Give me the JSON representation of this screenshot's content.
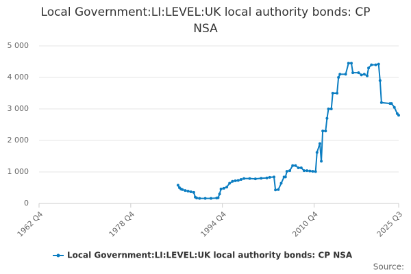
{
  "chart_data": {
    "type": "line",
    "title": "Local Government:LI:LEVEL:UK local authority bonds: CP NSA",
    "source": "Source:",
    "x": [
      "1987 Q1",
      "1987 Q2",
      "1987 Q3",
      "1987 Q4",
      "1988 Q2",
      "1988 Q4",
      "1989 Q2",
      "1989 Q4",
      "1990 Q1",
      "1990 Q2",
      "1990 Q4",
      "1991 Q4",
      "1992 Q4",
      "1993 Q4",
      "1994 Q1",
      "1994 Q2",
      "1994 Q3",
      "1995 Q1",
      "1995 Q3",
      "1996 Q1",
      "1996 Q3",
      "1997 Q1",
      "1997 Q3",
      "1998 Q1",
      "1998 Q3",
      "1999 Q3",
      "2000 Q3",
      "2001 Q3",
      "2002 Q3",
      "2003 Q1",
      "2003 Q4",
      "2004 Q1",
      "2004 Q3",
      "2005 Q1",
      "2005 Q3",
      "2005 Q4",
      "2006 Q1",
      "2006 Q3",
      "2007 Q1",
      "2007 Q3",
      "2008 Q1",
      "2008 Q3",
      "2009 Q1",
      "2009 Q3",
      "2010 Q1",
      "2010 Q3",
      "2011 Q1",
      "2011 Q2",
      "2011 Q4",
      "2012 Q1",
      "2012 Q2",
      "2012 Q4",
      "2013 Q1",
      "2013 Q2",
      "2013 Q4",
      "2014 Q1",
      "2014 Q4",
      "2015 Q1",
      "2015 Q2",
      "2016 Q2",
      "2016 Q4",
      "2017 Q2",
      "2017 Q3",
      "2018 Q3",
      "2019 Q1",
      "2019 Q3",
      "2020 Q1",
      "2020 Q2",
      "2020 Q4",
      "2021 Q3",
      "2022 Q1",
      "2022 Q2",
      "2022 Q3",
      "2024 Q1",
      "2024 Q2",
      "2024 Q4",
      "2025 Q2",
      "2025 Q3"
    ],
    "series": [
      {
        "name": "Local Government:LI:LEVEL:UK local authority bonds: CP NSA",
        "color": "#0b7dc1",
        "values": [
          580,
          500,
          460,
          440,
          410,
          390,
          370,
          350,
          200,
          170,
          160,
          160,
          160,
          170,
          180,
          300,
          460,
          480,
          520,
          640,
          700,
          720,
          730,
          760,
          790,
          790,
          780,
          800,
          810,
          830,
          840,
          430,
          440,
          640,
          840,
          840,
          1020,
          1040,
          1200,
          1200,
          1130,
          1130,
          1040,
          1040,
          1030,
          1020,
          1010,
          1620,
          1900,
          1340,
          2300,
          2300,
          2700,
          3000,
          3000,
          3500,
          3500,
          4000,
          4100,
          4100,
          4450,
          4450,
          4150,
          4150,
          4080,
          4100,
          4050,
          4300,
          4400,
          4400,
          4420,
          3900,
          3200,
          3170,
          3170,
          3050,
          2850,
          2800
        ]
      }
    ],
    "xlim": [
      "1962 Q4",
      "2025 Q3"
    ],
    "xticks": [
      "1962 Q4",
      "1978 Q4",
      "1994 Q4",
      "2010 Q4",
      "2025 Q3"
    ],
    "ylim": [
      0,
      5000
    ],
    "yticks": [
      0,
      {
        "value": 1000,
        "label": "1 000"
      },
      {
        "value": 2000,
        "label": "2 000"
      },
      {
        "value": 3000,
        "label": "3 000"
      },
      {
        "value": 4000,
        "label": "4 000"
      },
      {
        "value": 5000,
        "label": "5 000"
      }
    ],
    "grid": true
  }
}
